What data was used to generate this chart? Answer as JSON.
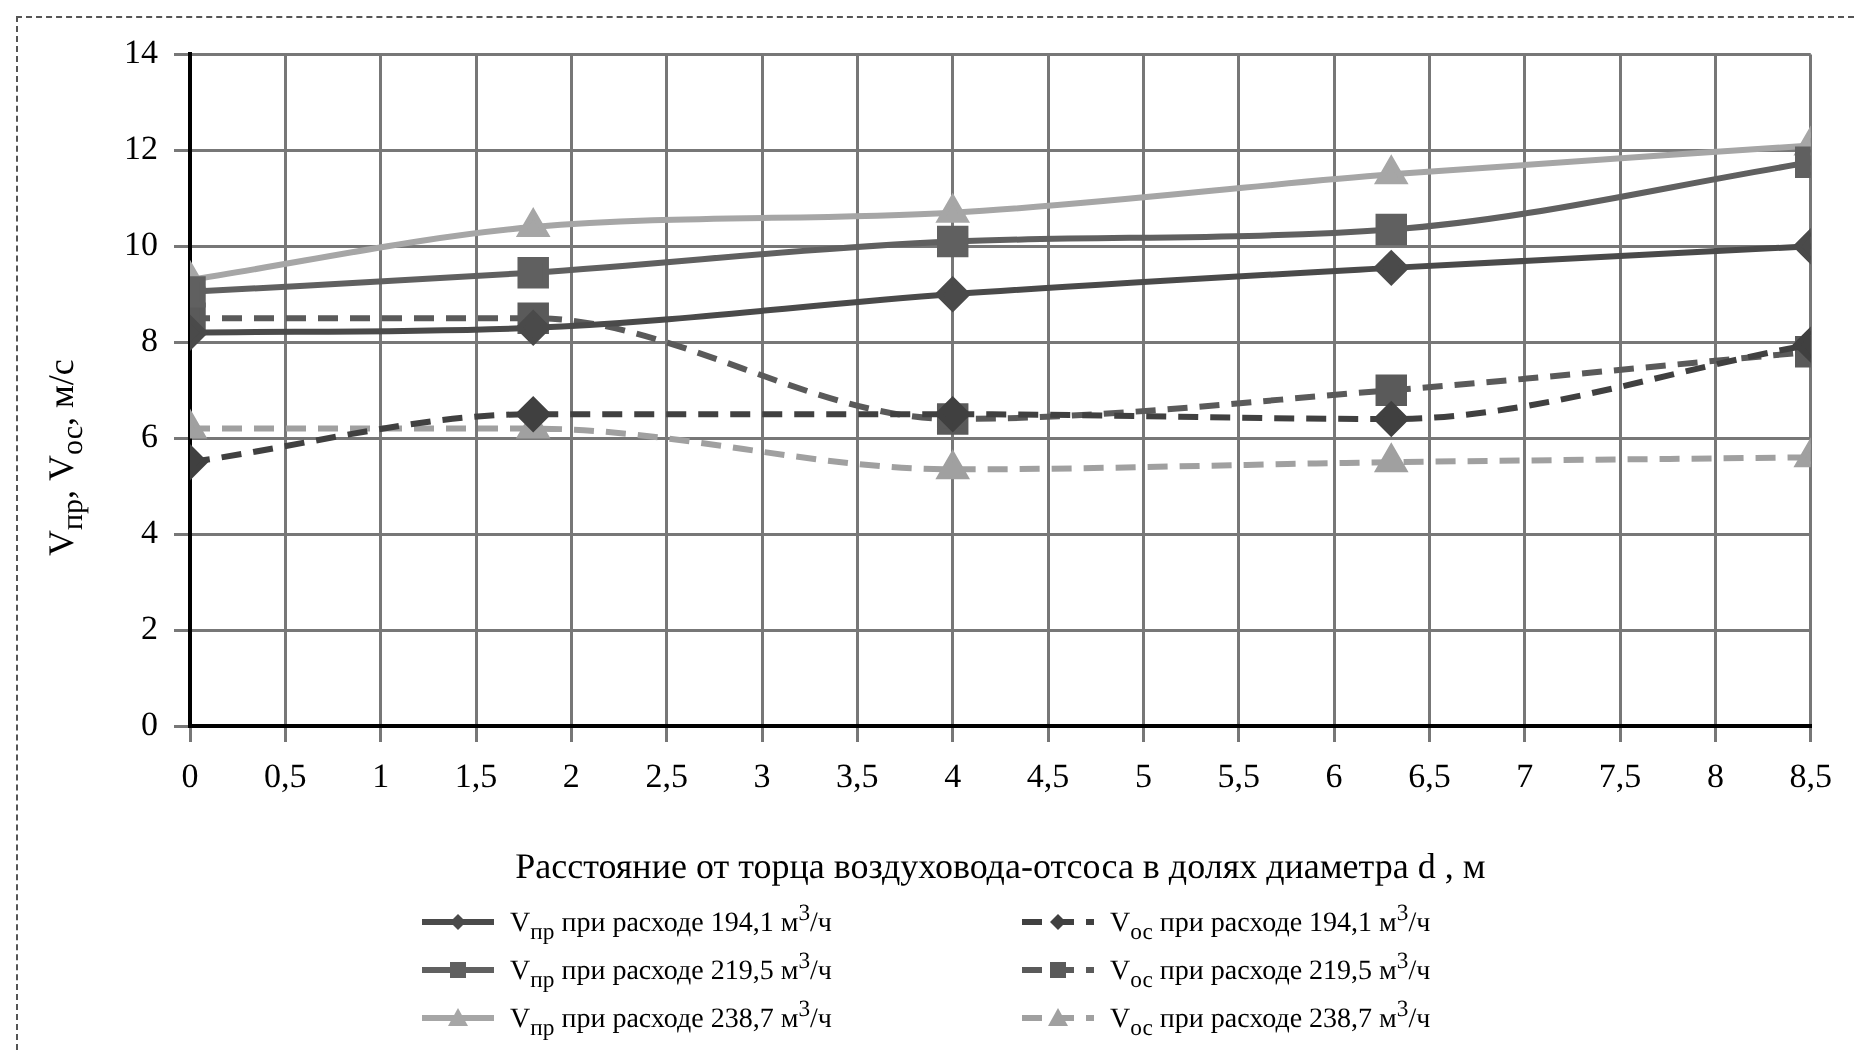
{
  "chart_data": {
    "type": "line",
    "xlabel": "Расстояние от торца воздуховода-отсоса в долях диаметра d , м",
    "ylabel": "V$_{пр}$, V$_{ос}$, м/с",
    "xlim": [
      0,
      8.5
    ],
    "xticks": [
      0,
      {
        "value": 0.5,
        "label": "0,5"
      },
      1,
      {
        "value": 1.5,
        "label": "1,5"
      },
      2,
      {
        "value": 2.5,
        "label": "2,5"
      },
      3,
      {
        "value": 3.5,
        "label": "3,5"
      },
      4,
      {
        "value": 4.5,
        "label": "4,5"
      },
      5,
      {
        "value": 5.5,
        "label": "5,5"
      },
      6,
      {
        "value": 6.5,
        "label": "6,5"
      },
      7,
      {
        "value": 7.5,
        "label": "7,5"
      },
      8,
      {
        "value": 8.5,
        "label": "8,5"
      }
    ],
    "ylim": [
      0,
      14
    ],
    "yticks": [
      0,
      2,
      4,
      6,
      8,
      10,
      12,
      14
    ],
    "grid": true,
    "legend": "bottom",
    "x": [
      0,
      1.8,
      4,
      6.3,
      8.5
    ],
    "series": [
      {
        "name": "V$_{пр}$ при расходе 194,1 м$^{3}$/ч",
        "color": "#4a4a4a",
        "marker": "diamond",
        "line_style": "solid",
        "values": [
          8.2,
          8.3,
          9.0,
          9.55,
          10.0
        ]
      },
      {
        "name": "V$_{ос}$ при расходе 194,1 м$^{3}$/ч",
        "color": "#404040",
        "marker": "diamond",
        "line_style": "dashed",
        "values": [
          5.5,
          6.5,
          6.5,
          6.4,
          7.95
        ]
      },
      {
        "name": "V$_{пр}$ при расходе 219,5 м$^{3}$/ч",
        "color": "#606060",
        "marker": "square",
        "line_style": "solid",
        "values": [
          9.05,
          9.45,
          10.1,
          10.35,
          11.75
        ]
      },
      {
        "name": "V$_{ос}$ при расходе 219,5 м$^{3}$/ч",
        "color": "#5a5a5a",
        "marker": "square",
        "line_style": "dashed",
        "values": [
          8.5,
          8.5,
          6.4,
          7.0,
          7.8
        ]
      },
      {
        "name": "V$_{пр}$ при расходе 238,7 м$^{3}$/ч",
        "color": "#a6a6a6",
        "marker": "triangle",
        "line_style": "solid",
        "values": [
          9.3,
          10.4,
          10.7,
          11.5,
          12.1
        ]
      },
      {
        "name": "V$_{ос}$ при расходе 238,7 м$^{3}$/ч",
        "color": "#a0a0a0",
        "marker": "triangle",
        "line_style": "dashed",
        "values": [
          6.2,
          6.2,
          5.35,
          5.5,
          5.6
        ]
      }
    ]
  }
}
